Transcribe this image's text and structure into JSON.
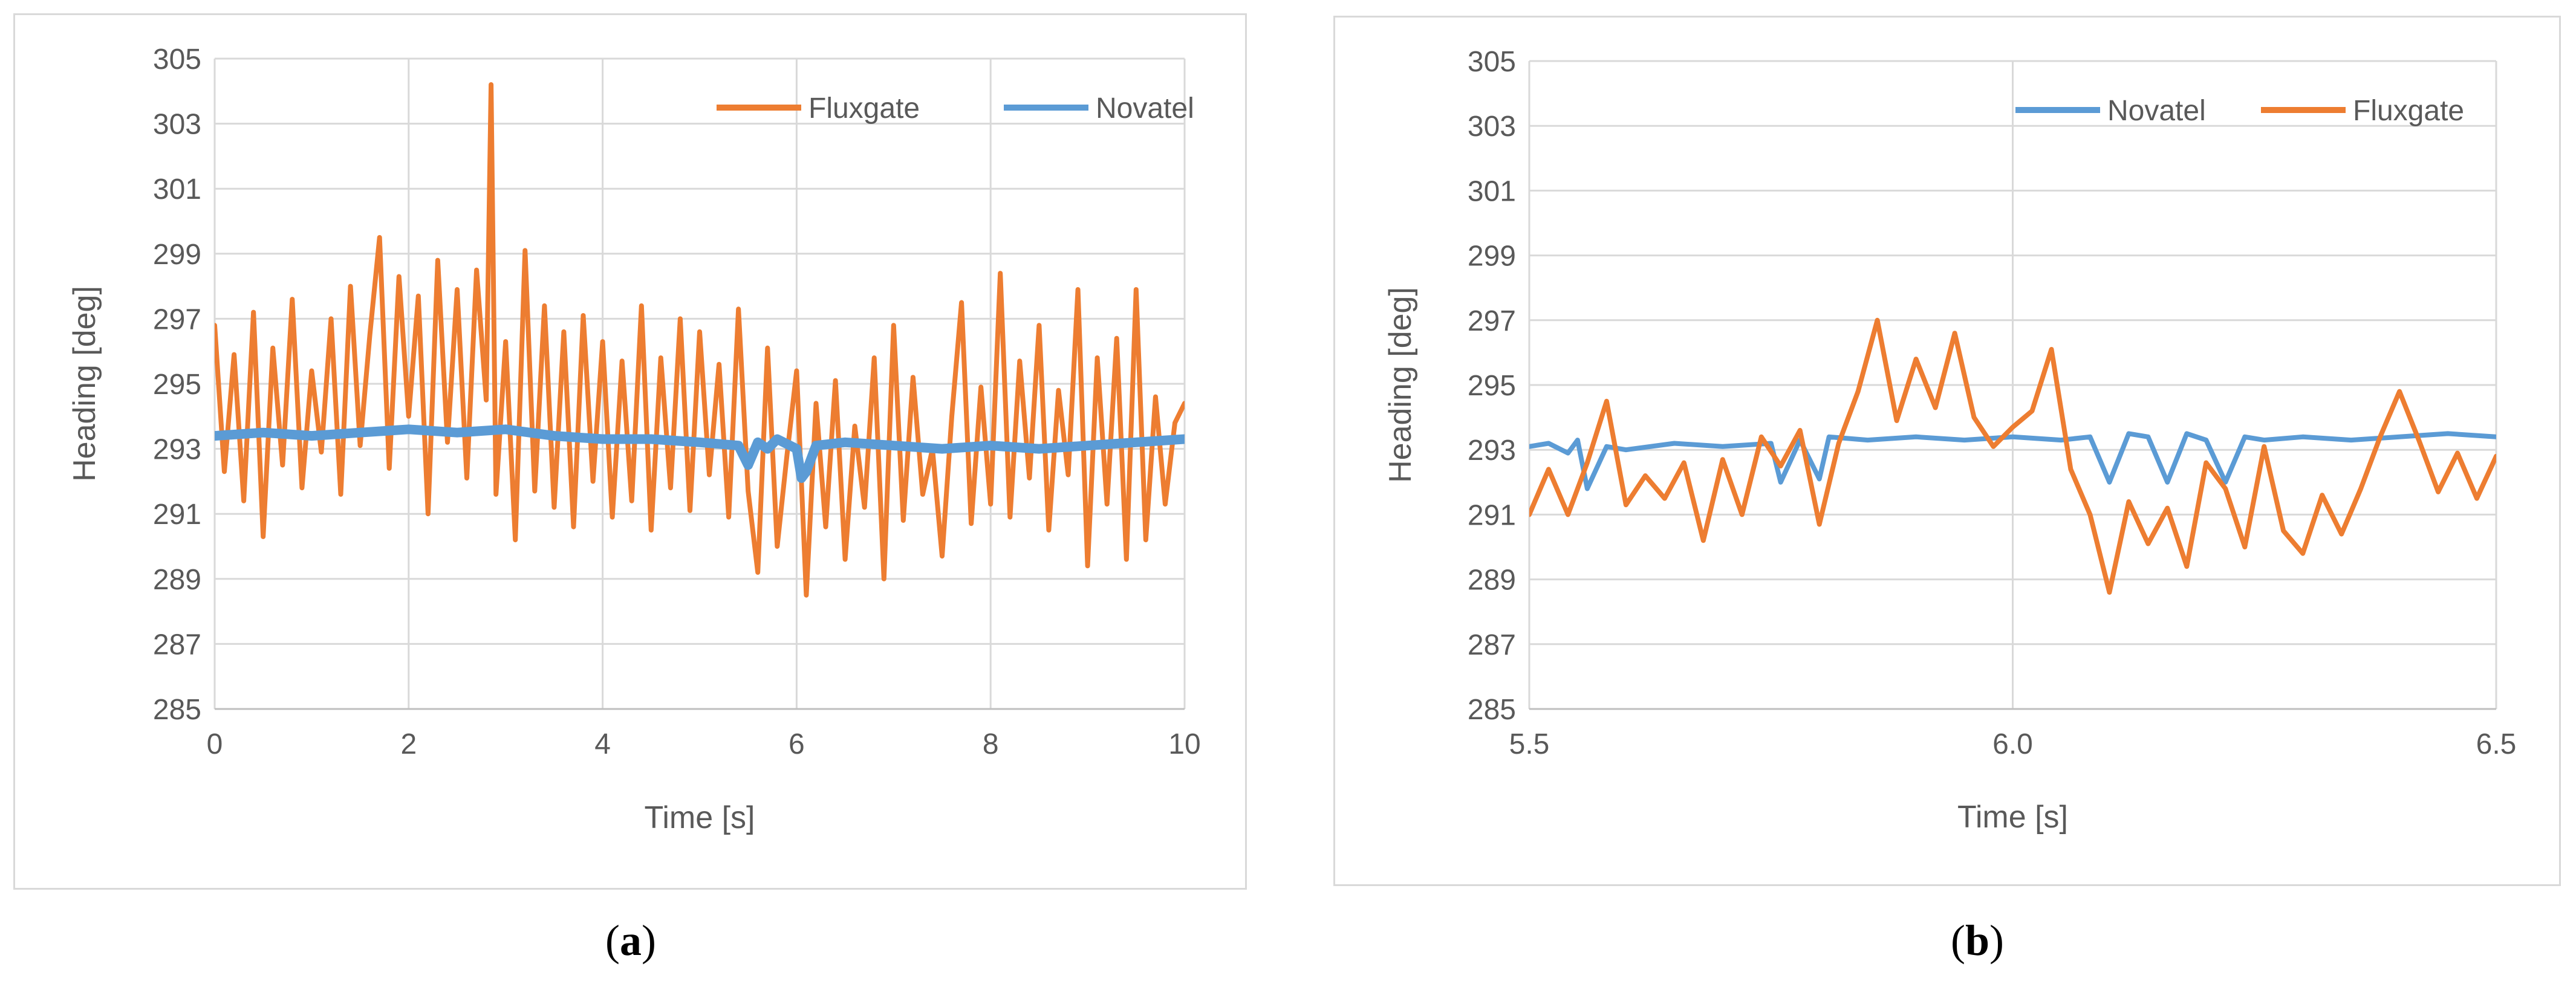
{
  "colors": {
    "fluxgate": "#ED7D31",
    "novatel": "#5B9BD5",
    "grid": "#d9d9d9",
    "text": "#595959"
  },
  "chart_data": [
    {
      "type": "line",
      "panel": "a",
      "caption": {
        "open": "(",
        "letter": "a",
        "close": ")"
      },
      "xlabel": "Time [s]",
      "ylabel": "Heading [deg]",
      "xlim": [
        0,
        10
      ],
      "ylim": [
        285,
        305
      ],
      "xticks": [
        0,
        2,
        4,
        6,
        8,
        10
      ],
      "xtick_labels": [
        "0",
        "2",
        "4",
        "6",
        "8",
        "10"
      ],
      "yticks": [
        285,
        287,
        289,
        291,
        293,
        295,
        297,
        299,
        301,
        303,
        305
      ],
      "grid": true,
      "legend_position": "top-right",
      "series": [
        {
          "name": "Fluxgate",
          "color": "#ED7D31",
          "x": [
            0,
            0.1,
            0.2,
            0.3,
            0.4,
            0.5,
            0.6,
            0.7,
            0.8,
            0.9,
            1.0,
            1.1,
            1.2,
            1.3,
            1.4,
            1.5,
            1.6,
            1.7,
            1.8,
            1.9,
            2.0,
            2.1,
            2.2,
            2.3,
            2.4,
            2.5,
            2.6,
            2.7,
            2.8,
            2.85,
            2.9,
            3.0,
            3.1,
            3.2,
            3.3,
            3.4,
            3.5,
            3.6,
            3.7,
            3.8,
            3.9,
            4.0,
            4.1,
            4.2,
            4.3,
            4.4,
            4.5,
            4.6,
            4.7,
            4.8,
            4.9,
            5.0,
            5.1,
            5.2,
            5.3,
            5.4,
            5.5,
            5.6,
            5.7,
            5.8,
            5.9,
            6.0,
            6.1,
            6.2,
            6.3,
            6.4,
            6.5,
            6.6,
            6.7,
            6.8,
            6.9,
            7.0,
            7.1,
            7.2,
            7.3,
            7.4,
            7.5,
            7.6,
            7.7,
            7.8,
            7.9,
            8.0,
            8.1,
            8.2,
            8.3,
            8.4,
            8.5,
            8.6,
            8.7,
            8.8,
            8.9,
            9.0,
            9.1,
            9.2,
            9.3,
            9.4,
            9.5,
            9.6,
            9.7,
            9.8,
            9.9,
            10.0
          ],
          "values": [
            296.8,
            292.3,
            295.9,
            291.4,
            297.2,
            290.3,
            296.1,
            292.5,
            297.6,
            291.8,
            295.4,
            292.9,
            297.0,
            291.6,
            298.0,
            293.1,
            296.5,
            299.5,
            292.4,
            298.3,
            294.0,
            297.7,
            291.0,
            298.8,
            293.2,
            297.9,
            292.1,
            298.5,
            294.5,
            304.2,
            291.6,
            296.3,
            290.2,
            299.1,
            291.7,
            297.4,
            291.2,
            296.6,
            290.6,
            297.1,
            292.0,
            296.3,
            290.9,
            295.7,
            291.4,
            297.4,
            290.5,
            295.8,
            291.8,
            297.0,
            291.1,
            296.6,
            292.2,
            295.6,
            290.9,
            297.3,
            291.7,
            289.2,
            296.1,
            290.0,
            292.8,
            295.4,
            288.5,
            294.4,
            290.6,
            295.1,
            289.6,
            293.7,
            291.2,
            295.8,
            289.0,
            296.8,
            290.8,
            295.2,
            291.6,
            293.0,
            289.7,
            294.0,
            297.5,
            290.7,
            294.9,
            291.3,
            298.4,
            290.9,
            295.7,
            292.1,
            296.8,
            290.5,
            294.8,
            292.2,
            297.9,
            289.4,
            295.8,
            291.3,
            296.4,
            289.6,
            297.9,
            290.2,
            294.6,
            291.3,
            293.8,
            294.4
          ]
        },
        {
          "name": "Novatel",
          "color": "#5B9BD5",
          "x": [
            0,
            0.5,
            1.0,
            1.5,
            2.0,
            2.5,
            3.0,
            3.5,
            4.0,
            4.5,
            5.0,
            5.4,
            5.5,
            5.6,
            5.7,
            5.8,
            6.0,
            6.05,
            6.1,
            6.2,
            6.5,
            7.0,
            7.5,
            8.0,
            8.5,
            9.0,
            9.5,
            10.0
          ],
          "values": [
            293.4,
            293.5,
            293.4,
            293.5,
            293.6,
            293.5,
            293.6,
            293.4,
            293.3,
            293.3,
            293.2,
            293.1,
            292.5,
            293.2,
            293.0,
            293.3,
            293.0,
            292.1,
            292.3,
            293.1,
            293.2,
            293.1,
            293.0,
            293.1,
            293.0,
            293.1,
            293.2,
            293.3
          ]
        }
      ]
    },
    {
      "type": "line",
      "panel": "b",
      "caption": {
        "open": "(",
        "letter": "b",
        "close": ")"
      },
      "xlabel": "Time [s]",
      "ylabel": "Heading [deg]",
      "xlim": [
        5.5,
        6.5
      ],
      "ylim": [
        285,
        305
      ],
      "xticks": [
        5.5,
        6.0,
        6.5
      ],
      "xtick_labels": [
        "5.5",
        "6.0",
        "6.5"
      ],
      "yticks": [
        285,
        287,
        289,
        291,
        293,
        295,
        297,
        299,
        301,
        303,
        305
      ],
      "grid": true,
      "legend_position": "top-right",
      "series": [
        {
          "name": "Novatel",
          "color": "#5B9BD5",
          "x": [
            5.5,
            5.52,
            5.54,
            5.55,
            5.56,
            5.58,
            5.6,
            5.65,
            5.7,
            5.75,
            5.76,
            5.78,
            5.8,
            5.81,
            5.85,
            5.9,
            5.95,
            6.0,
            6.05,
            6.08,
            6.1,
            6.12,
            6.14,
            6.16,
            6.18,
            6.2,
            6.22,
            6.24,
            6.26,
            6.3,
            6.35,
            6.4,
            6.45,
            6.5
          ],
          "values": [
            293.1,
            293.2,
            292.9,
            293.3,
            291.8,
            293.1,
            293.0,
            293.2,
            293.1,
            293.2,
            292.0,
            293.3,
            292.1,
            293.4,
            293.3,
            293.4,
            293.3,
            293.4,
            293.3,
            293.4,
            292.0,
            293.5,
            293.4,
            292.0,
            293.5,
            293.3,
            292.0,
            293.4,
            293.3,
            293.4,
            293.3,
            293.4,
            293.5,
            293.4
          ]
        },
        {
          "name": "Fluxgate",
          "color": "#ED7D31",
          "x": [
            5.5,
            5.52,
            5.54,
            5.56,
            5.58,
            5.6,
            5.62,
            5.64,
            5.66,
            5.68,
            5.7,
            5.72,
            5.74,
            5.76,
            5.78,
            5.8,
            5.82,
            5.84,
            5.86,
            5.88,
            5.9,
            5.92,
            5.94,
            5.96,
            5.98,
            6.0,
            6.02,
            6.04,
            6.06,
            6.08,
            6.1,
            6.12,
            6.14,
            6.16,
            6.18,
            6.2,
            6.22,
            6.24,
            6.26,
            6.28,
            6.3,
            6.32,
            6.34,
            6.36,
            6.38,
            6.4,
            6.42,
            6.44,
            6.46,
            6.48,
            6.5
          ],
          "values": [
            291.0,
            292.4,
            291.0,
            292.6,
            294.5,
            291.3,
            292.2,
            291.5,
            292.6,
            290.2,
            292.7,
            291.0,
            293.4,
            292.5,
            293.6,
            290.7,
            293.2,
            294.8,
            297.0,
            293.9,
            295.8,
            294.3,
            296.6,
            294.0,
            293.1,
            293.7,
            294.2,
            296.1,
            292.4,
            291.0,
            288.6,
            291.4,
            290.1,
            291.2,
            289.4,
            292.6,
            291.8,
            290.0,
            293.1,
            290.5,
            289.8,
            291.6,
            290.4,
            291.8,
            293.4,
            294.8,
            293.3,
            291.7,
            292.9,
            291.5,
            292.8
          ]
        }
      ]
    }
  ]
}
